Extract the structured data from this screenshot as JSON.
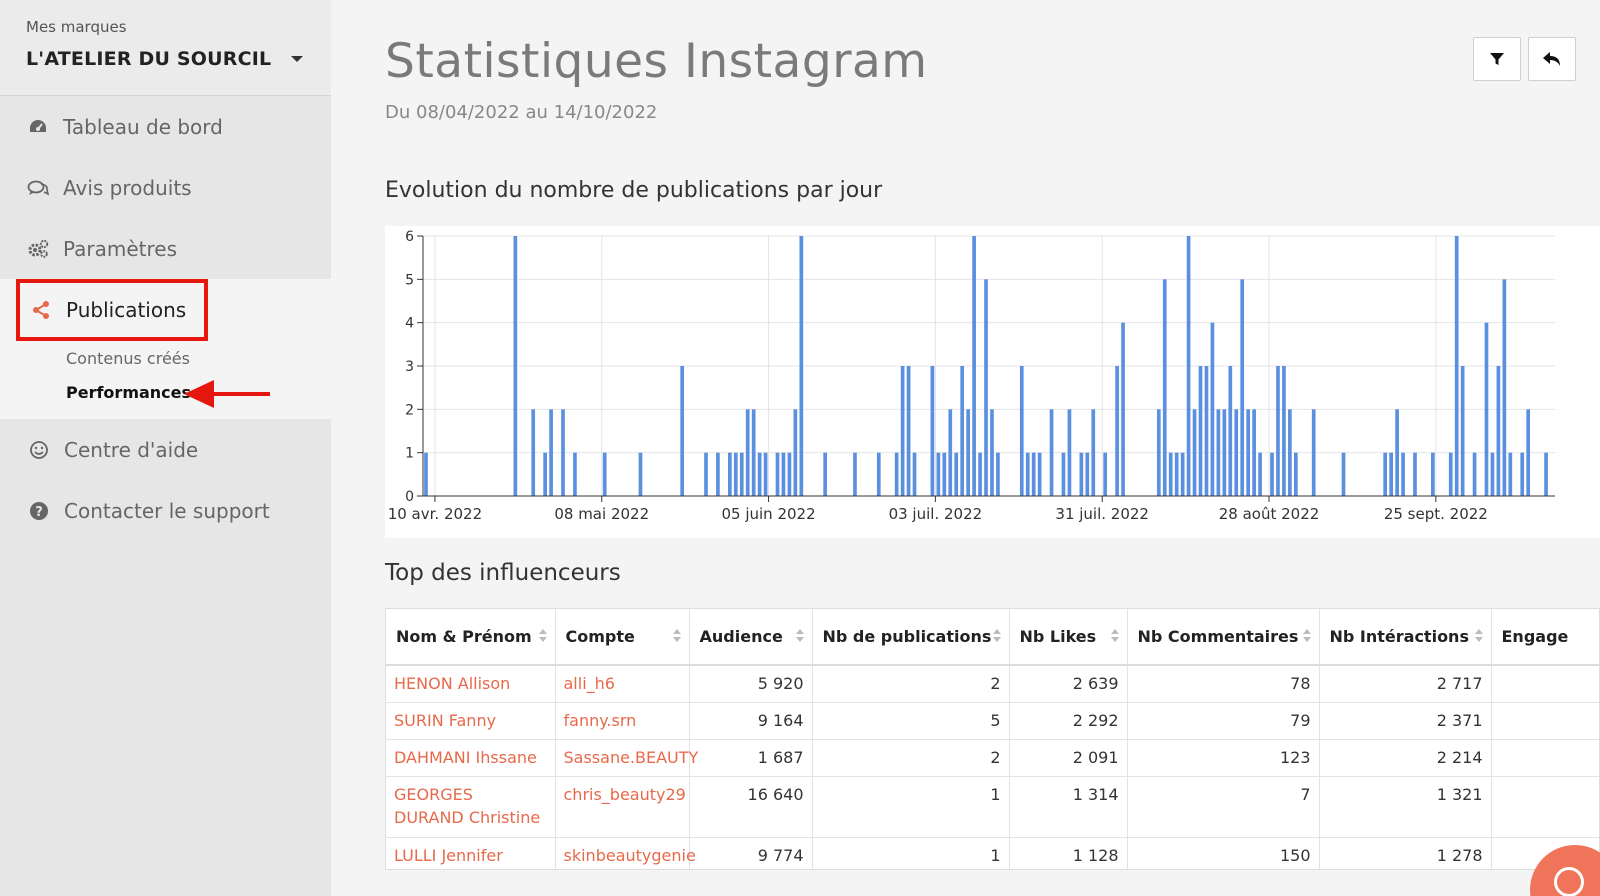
{
  "sidebar": {
    "brand_label": "Mes marques",
    "brand_name": "L'ATELIER DU SOURCIL",
    "items": [
      {
        "label": "Tableau de bord",
        "icon": "dashboard-icon"
      },
      {
        "label": "Avis produits",
        "icon": "comments-icon"
      },
      {
        "label": "Paramètres",
        "icon": "gears-icon"
      }
    ],
    "publications": {
      "label": "Publications",
      "icon": "share-icon",
      "subitems": [
        {
          "label": "Contenus créés",
          "active": false
        },
        {
          "label": "Performances",
          "active": true
        }
      ]
    },
    "lower_items": [
      {
        "label": "Centre d'aide",
        "icon": "smiley-icon"
      },
      {
        "label": "Contacter le support",
        "icon": "question-circle-icon"
      }
    ]
  },
  "header": {
    "title": "Statistiques Instagram",
    "date_range": "Du 08/04/2022 au 14/10/2022",
    "filter_icon": "filter-icon",
    "back_icon": "reply-icon"
  },
  "chart_section": {
    "title": "Evolution du nombre de publications par jour"
  },
  "chart_data": {
    "type": "bar",
    "title": "Evolution du nombre de publications par jour",
    "xlabel": "",
    "ylabel": "",
    "ylim": [
      0,
      6
    ],
    "yticks": [
      0,
      1,
      2,
      3,
      4,
      5,
      6
    ],
    "xlim": [
      "2022-04-08",
      "2022-10-14"
    ],
    "xticks": [
      "10 avr. 2022",
      "08 mai 2022",
      "05 juin 2022",
      "03 juil. 2022",
      "31 juil. 2022",
      "28 août 2022",
      "25 sept. 2022"
    ],
    "color": "#5b8fe0",
    "grid": true,
    "points": [
      {
        "date": "2022-04-08",
        "value": 1
      },
      {
        "date": "2022-04-23",
        "value": 6
      },
      {
        "date": "2022-04-26",
        "value": 2
      },
      {
        "date": "2022-04-28",
        "value": 1
      },
      {
        "date": "2022-04-29",
        "value": 2
      },
      {
        "date": "2022-05-01",
        "value": 2
      },
      {
        "date": "2022-05-03",
        "value": 1
      },
      {
        "date": "2022-05-08",
        "value": 1
      },
      {
        "date": "2022-05-14",
        "value": 1
      },
      {
        "date": "2022-05-21",
        "value": 3
      },
      {
        "date": "2022-05-25",
        "value": 1
      },
      {
        "date": "2022-05-27",
        "value": 1
      },
      {
        "date": "2022-05-29",
        "value": 1
      },
      {
        "date": "2022-05-30",
        "value": 1
      },
      {
        "date": "2022-05-31",
        "value": 1
      },
      {
        "date": "2022-06-01",
        "value": 2
      },
      {
        "date": "2022-06-02",
        "value": 2
      },
      {
        "date": "2022-06-03",
        "value": 1
      },
      {
        "date": "2022-06-04",
        "value": 1
      },
      {
        "date": "2022-06-06",
        "value": 1
      },
      {
        "date": "2022-06-07",
        "value": 1
      },
      {
        "date": "2022-06-08",
        "value": 1
      },
      {
        "date": "2022-06-09",
        "value": 2
      },
      {
        "date": "2022-06-10",
        "value": 6
      },
      {
        "date": "2022-06-14",
        "value": 1
      },
      {
        "date": "2022-06-19",
        "value": 1
      },
      {
        "date": "2022-06-23",
        "value": 1
      },
      {
        "date": "2022-06-26",
        "value": 1
      },
      {
        "date": "2022-06-27",
        "value": 3
      },
      {
        "date": "2022-06-28",
        "value": 3
      },
      {
        "date": "2022-06-29",
        "value": 1
      },
      {
        "date": "2022-07-02",
        "value": 3
      },
      {
        "date": "2022-07-03",
        "value": 1
      },
      {
        "date": "2022-07-04",
        "value": 1
      },
      {
        "date": "2022-07-05",
        "value": 2
      },
      {
        "date": "2022-07-06",
        "value": 1
      },
      {
        "date": "2022-07-07",
        "value": 3
      },
      {
        "date": "2022-07-08",
        "value": 2
      },
      {
        "date": "2022-07-09",
        "value": 6
      },
      {
        "date": "2022-07-10",
        "value": 1
      },
      {
        "date": "2022-07-11",
        "value": 5
      },
      {
        "date": "2022-07-12",
        "value": 2
      },
      {
        "date": "2022-07-13",
        "value": 1
      },
      {
        "date": "2022-07-17",
        "value": 3
      },
      {
        "date": "2022-07-18",
        "value": 1
      },
      {
        "date": "2022-07-19",
        "value": 1
      },
      {
        "date": "2022-07-20",
        "value": 1
      },
      {
        "date": "2022-07-22",
        "value": 2
      },
      {
        "date": "2022-07-24",
        "value": 1
      },
      {
        "date": "2022-07-25",
        "value": 2
      },
      {
        "date": "2022-07-27",
        "value": 1
      },
      {
        "date": "2022-07-28",
        "value": 1
      },
      {
        "date": "2022-07-29",
        "value": 2
      },
      {
        "date": "2022-07-31",
        "value": 1
      },
      {
        "date": "2022-08-02",
        "value": 3
      },
      {
        "date": "2022-08-03",
        "value": 4
      },
      {
        "date": "2022-08-09",
        "value": 2
      },
      {
        "date": "2022-08-10",
        "value": 5
      },
      {
        "date": "2022-08-11",
        "value": 1
      },
      {
        "date": "2022-08-12",
        "value": 1
      },
      {
        "date": "2022-08-13",
        "value": 1
      },
      {
        "date": "2022-08-14",
        "value": 6
      },
      {
        "date": "2022-08-15",
        "value": 2
      },
      {
        "date": "2022-08-16",
        "value": 3
      },
      {
        "date": "2022-08-17",
        "value": 3
      },
      {
        "date": "2022-08-18",
        "value": 4
      },
      {
        "date": "2022-08-19",
        "value": 2
      },
      {
        "date": "2022-08-20",
        "value": 2
      },
      {
        "date": "2022-08-21",
        "value": 3
      },
      {
        "date": "2022-08-22",
        "value": 2
      },
      {
        "date": "2022-08-23",
        "value": 5
      },
      {
        "date": "2022-08-24",
        "value": 2
      },
      {
        "date": "2022-08-25",
        "value": 2
      },
      {
        "date": "2022-08-26",
        "value": 1
      },
      {
        "date": "2022-08-28",
        "value": 1
      },
      {
        "date": "2022-08-29",
        "value": 3
      },
      {
        "date": "2022-08-30",
        "value": 3
      },
      {
        "date": "2022-08-31",
        "value": 2
      },
      {
        "date": "2022-09-01",
        "value": 1
      },
      {
        "date": "2022-09-04",
        "value": 2
      },
      {
        "date": "2022-09-09",
        "value": 1
      },
      {
        "date": "2022-09-16",
        "value": 1
      },
      {
        "date": "2022-09-17",
        "value": 1
      },
      {
        "date": "2022-09-18",
        "value": 2
      },
      {
        "date": "2022-09-19",
        "value": 1
      },
      {
        "date": "2022-09-21",
        "value": 1
      },
      {
        "date": "2022-09-24",
        "value": 1
      },
      {
        "date": "2022-09-27",
        "value": 1
      },
      {
        "date": "2022-09-28",
        "value": 6
      },
      {
        "date": "2022-09-29",
        "value": 3
      },
      {
        "date": "2022-10-01",
        "value": 1
      },
      {
        "date": "2022-10-03",
        "value": 4
      },
      {
        "date": "2022-10-04",
        "value": 1
      },
      {
        "date": "2022-10-05",
        "value": 3
      },
      {
        "date": "2022-10-06",
        "value": 5
      },
      {
        "date": "2022-10-07",
        "value": 1
      },
      {
        "date": "2022-10-09",
        "value": 1
      },
      {
        "date": "2022-10-10",
        "value": 2
      },
      {
        "date": "2022-10-13",
        "value": 1
      }
    ]
  },
  "table_section": {
    "title": "Top des influenceurs",
    "columns": [
      "Nom & Prénom",
      "Compte",
      "Audience",
      "Nb de publications",
      "Nb Likes",
      "Nb Commentaires",
      "Nb Intéractions",
      "Engage"
    ],
    "rows": [
      {
        "name": "HENON Allison",
        "account": "alli_h6",
        "audience": "5 920",
        "publications": "2",
        "likes": "2 639",
        "comments": "78",
        "interactions": "2 717"
      },
      {
        "name": "SURIN Fanny",
        "account": "fanny.srn",
        "audience": "9 164",
        "publications": "5",
        "likes": "2 292",
        "comments": "79",
        "interactions": "2 371"
      },
      {
        "name": "DAHMANI Ihssane",
        "account": "Sassane.BEAUTY",
        "audience": "1 687",
        "publications": "2",
        "likes": "2 091",
        "comments": "123",
        "interactions": "2 214"
      },
      {
        "name": "GEORGES DURAND Christine",
        "account": "chris_beauty29",
        "audience": "16 640",
        "publications": "1",
        "likes": "1 314",
        "comments": "7",
        "interactions": "1 321"
      },
      {
        "name": "LULLI Jennifer",
        "account": "skinbeautygenie",
        "audience": "9 774",
        "publications": "1",
        "likes": "1 128",
        "comments": "150",
        "interactions": "1 278"
      }
    ]
  },
  "colors": {
    "accent": "#e8694a",
    "highlight": "#e5170f",
    "bar": "#5b8fe0"
  },
  "help_icon": "chat-bubble-icon"
}
